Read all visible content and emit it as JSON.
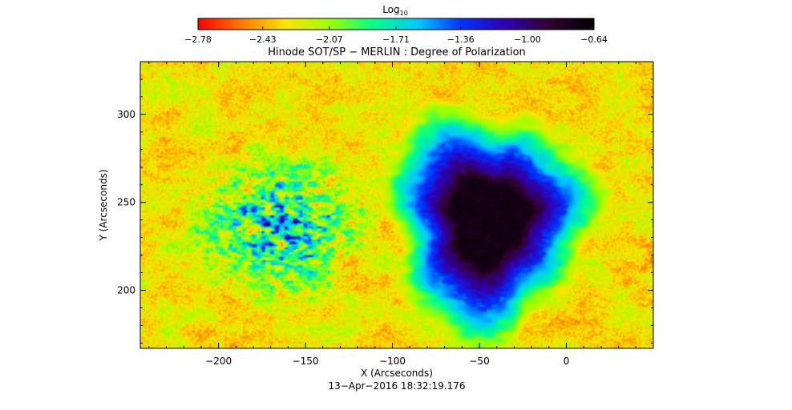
{
  "chart_data": {
    "type": "heatmap",
    "title": "Hinode SOT/SP − MERLIN : Degree of Polarization",
    "xlabel": "X (Arcseconds)",
    "ylabel": "Y (Arcseconds)",
    "timestamp": "13−Apr−2016 18:32:19.176",
    "xlim": [
      -245,
      50
    ],
    "ylim": [
      167,
      330
    ],
    "x_ticks": [
      -200,
      -150,
      -100,
      -50,
      0
    ],
    "x_tick_labels": [
      "−200",
      "−150",
      "−100",
      "−50",
      "0"
    ],
    "y_ticks": [
      200,
      250,
      300
    ],
    "y_tick_labels": [
      "200",
      "250",
      "300"
    ],
    "colorbar": {
      "label_base": "Log",
      "label_sub": "10",
      "range": [
        -2.78,
        -0.64
      ],
      "ticks": [
        -2.78,
        -2.43,
        -2.07,
        -1.71,
        -1.36,
        -1.0,
        -0.64
      ],
      "tick_labels": [
        "−2.78",
        "−2.43",
        "−2.07",
        "−1.71",
        "−1.36",
        "−1.00",
        "−0.64"
      ],
      "colormap": [
        "#ff0000",
        "#ff7a00",
        "#ffe400",
        "#9cff00",
        "#00ff8a",
        "#00c8ff",
        "#0030ff",
        "#3000b0",
        "#300030",
        "#000000"
      ]
    },
    "features": [
      {
        "kind": "sunspot",
        "center": [
          -45,
          240
        ],
        "radius_x": 40,
        "radius_y": 45,
        "value": -0.75
      },
      {
        "kind": "plage",
        "center": [
          -165,
          235
        ],
        "radius_x": 60,
        "radius_y": 50,
        "value": -1.3
      }
    ]
  }
}
